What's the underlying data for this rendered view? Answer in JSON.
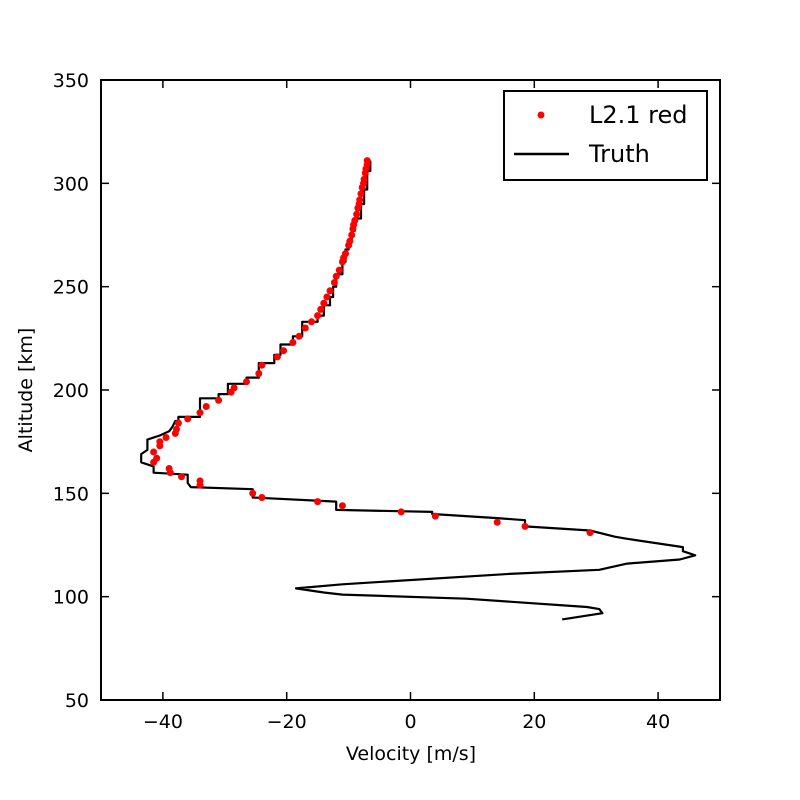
{
  "chart_data": {
    "type": "line",
    "xlabel": "Velocity [m/s]",
    "ylabel": "Altitude [km]",
    "xlim": [
      -50,
      50
    ],
    "ylim": [
      50,
      350
    ],
    "xticks": [
      -40,
      -20,
      0,
      20,
      40
    ],
    "yticks": [
      50,
      100,
      150,
      200,
      250,
      300,
      350
    ],
    "grid": false,
    "legend_position": "top-right",
    "colors": {
      "points": "#ff0000",
      "line": "#000000"
    },
    "series": [
      {
        "name": "L2.1 red",
        "kind": "scatter",
        "points": [
          [
            -7,
            311
          ],
          [
            -7,
            309
          ],
          [
            -7.2,
            307
          ],
          [
            -7.3,
            305
          ],
          [
            -7.5,
            302
          ],
          [
            -7.6,
            300
          ],
          [
            -7.8,
            298
          ],
          [
            -8,
            295
          ],
          [
            -8.2,
            292
          ],
          [
            -8.3,
            290
          ],
          [
            -8.5,
            288
          ],
          [
            -8.7,
            285
          ],
          [
            -9,
            282
          ],
          [
            -9.2,
            280
          ],
          [
            -9.3,
            278
          ],
          [
            -9.5,
            275
          ],
          [
            -9.8,
            272
          ],
          [
            -10,
            270
          ],
          [
            -10.5,
            266
          ],
          [
            -10.8,
            264
          ],
          [
            -11,
            262
          ],
          [
            -11.5,
            258
          ],
          [
            -12,
            255
          ],
          [
            -12.3,
            252
          ],
          [
            -13,
            248
          ],
          [
            -13.5,
            245
          ],
          [
            -14,
            242
          ],
          [
            -14.5,
            239
          ],
          [
            -15,
            236
          ],
          [
            -16,
            233
          ],
          [
            -17,
            230
          ],
          [
            -18,
            226
          ],
          [
            -19,
            223
          ],
          [
            -20.5,
            219
          ],
          [
            -21.5,
            216
          ],
          [
            -24,
            212
          ],
          [
            -24.5,
            208
          ],
          [
            -26.5,
            204
          ],
          [
            -28.5,
            201
          ],
          [
            -29,
            199
          ],
          [
            -31,
            195
          ],
          [
            -33,
            192
          ],
          [
            -34,
            189
          ],
          [
            -36,
            186
          ],
          [
            -37.5,
            184
          ],
          [
            -37.8,
            181
          ],
          [
            -38,
            179
          ],
          [
            -39.5,
            177
          ],
          [
            -40.5,
            175
          ],
          [
            -40.5,
            173
          ],
          [
            -41.5,
            170
          ],
          [
            -41,
            167
          ],
          [
            -41.5,
            165
          ],
          [
            -39,
            162
          ],
          [
            -38.8,
            160
          ],
          [
            -37,
            158
          ],
          [
            -34,
            156
          ],
          [
            -34,
            154
          ],
          [
            -25.5,
            150
          ],
          [
            -24,
            148
          ],
          [
            -15,
            146
          ],
          [
            -11,
            144
          ],
          [
            -1.5,
            141
          ],
          [
            4,
            139
          ],
          [
            14,
            136
          ],
          [
            18.5,
            134
          ],
          [
            29,
            131
          ]
        ]
      },
      {
        "name": "Truth",
        "kind": "line",
        "points": [
          [
            -6.5,
            311
          ],
          [
            -6.5,
            306
          ],
          [
            -7,
            306
          ],
          [
            -7,
            297
          ],
          [
            -7.5,
            297
          ],
          [
            -7.5,
            290
          ],
          [
            -8,
            290
          ],
          [
            -8,
            283
          ],
          [
            -9,
            283
          ],
          [
            -9,
            277
          ],
          [
            -9.5,
            277
          ],
          [
            -9.5,
            272
          ],
          [
            -10,
            272
          ],
          [
            -10,
            268
          ],
          [
            -10.5,
            268
          ],
          [
            -10.5,
            262
          ],
          [
            -11,
            262
          ],
          [
            -11,
            256
          ],
          [
            -12,
            256
          ],
          [
            -12,
            250
          ],
          [
            -12.5,
            250
          ],
          [
            -12.5,
            245
          ],
          [
            -13,
            245
          ],
          [
            -13,
            241
          ],
          [
            -14,
            241
          ],
          [
            -14,
            236
          ],
          [
            -15,
            236
          ],
          [
            -15,
            233
          ],
          [
            -17.5,
            233
          ],
          [
            -17.5,
            226
          ],
          [
            -19,
            226
          ],
          [
            -19,
            222
          ],
          [
            -21,
            222
          ],
          [
            -21,
            217
          ],
          [
            -22,
            217
          ],
          [
            -22,
            213
          ],
          [
            -24.5,
            213
          ],
          [
            -24.5,
            206
          ],
          [
            -26.5,
            206
          ],
          [
            -26.5,
            203
          ],
          [
            -29.5,
            203
          ],
          [
            -29.5,
            198
          ],
          [
            -31,
            198
          ],
          [
            -31,
            196
          ],
          [
            -34,
            196
          ],
          [
            -34,
            193
          ],
          [
            -34,
            187
          ],
          [
            -37.5,
            187
          ],
          [
            -37.5,
            185
          ],
          [
            -38,
            185
          ],
          [
            -38.5,
            182
          ],
          [
            -39,
            180
          ],
          [
            -40.5,
            178
          ],
          [
            -42.5,
            176
          ],
          [
            -42.5,
            171
          ],
          [
            -43.5,
            169
          ],
          [
            -43.5,
            165
          ],
          [
            -41.5,
            163
          ],
          [
            -41.5,
            160
          ],
          [
            -36,
            159
          ],
          [
            -36,
            155
          ],
          [
            -35.5,
            153
          ],
          [
            -25.5,
            152
          ],
          [
            -25.5,
            148
          ],
          [
            -12,
            146
          ],
          [
            -12,
            142
          ],
          [
            3.5,
            141
          ],
          [
            3.5,
            140
          ],
          [
            14,
            138
          ],
          [
            18.5,
            137
          ],
          [
            18.5,
            134
          ],
          [
            29,
            132
          ],
          [
            33,
            129
          ],
          [
            35,
            128
          ],
          [
            44,
            124
          ],
          [
            44,
            122
          ],
          [
            46,
            120
          ],
          [
            43.5,
            118
          ],
          [
            35,
            116
          ],
          [
            30.5,
            113
          ],
          [
            16,
            111
          ],
          [
            -11,
            106
          ],
          [
            -18.5,
            104
          ],
          [
            -14,
            102
          ],
          [
            -11,
            101
          ],
          [
            9,
            99
          ],
          [
            28.5,
            95
          ],
          [
            30.5,
            94
          ],
          [
            31,
            92
          ],
          [
            24.5,
            89
          ]
        ]
      }
    ]
  }
}
